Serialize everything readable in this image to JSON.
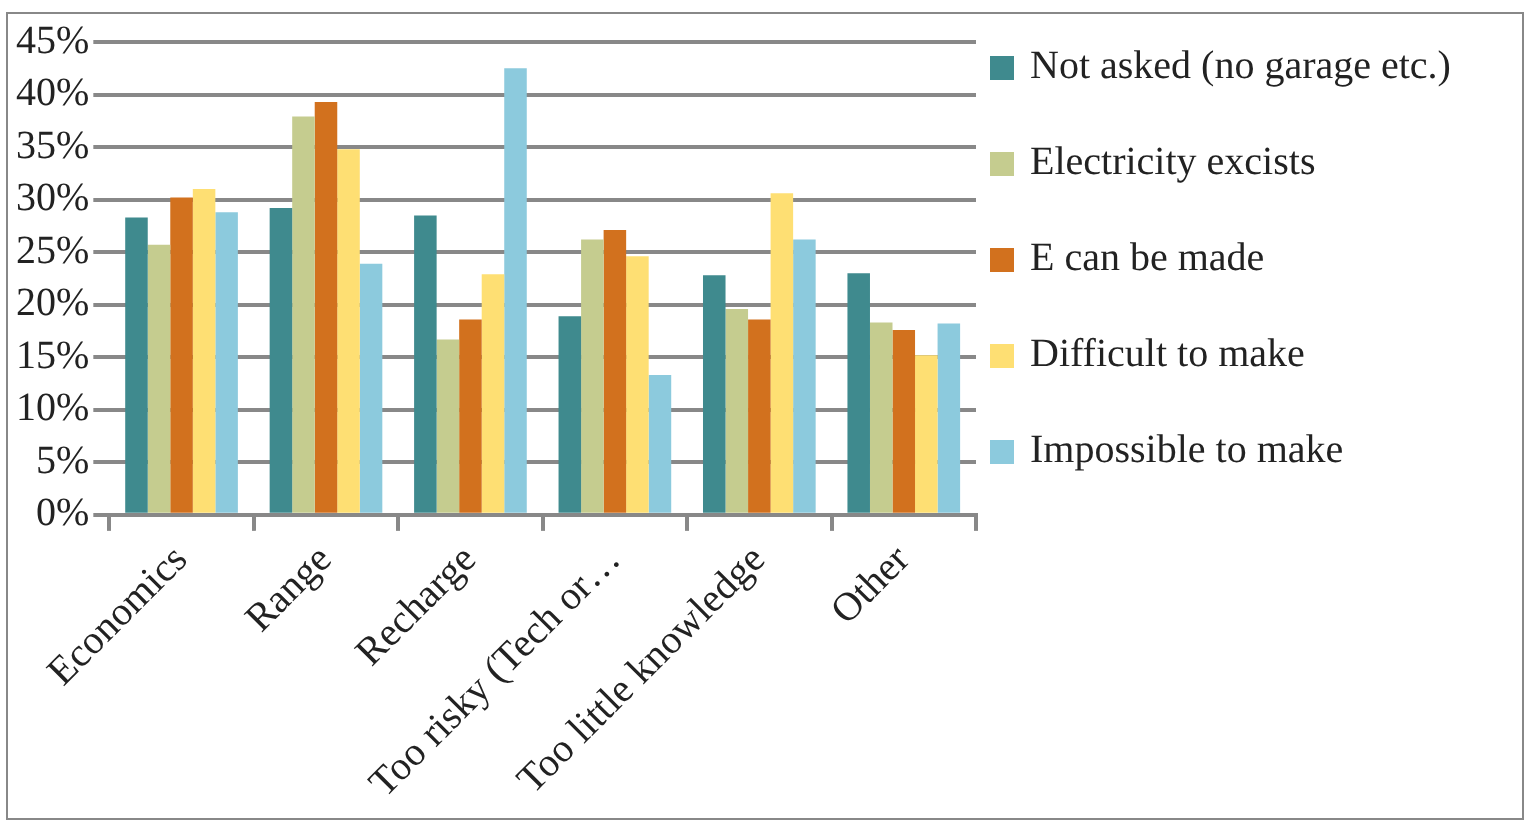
{
  "chart_data": {
    "type": "bar",
    "categories": [
      "Economics",
      "Range",
      "Recharge",
      "Too risky (Tech or…",
      "Too little knowledge",
      "Other"
    ],
    "series": [
      {
        "name": "Not asked (no garage etc.)",
        "color": "#3f8a8e",
        "values": [
          28.3,
          29.2,
          28.5,
          18.9,
          22.8,
          23.0
        ]
      },
      {
        "name": "Electricity excists",
        "color": "#c5cc8f",
        "values": [
          25.7,
          37.9,
          16.7,
          26.2,
          19.6,
          18.3
        ]
      },
      {
        "name": "E can be made",
        "color": "#d2711e",
        "values": [
          30.2,
          39.3,
          18.6,
          27.1,
          18.6,
          17.6
        ]
      },
      {
        "name": "Difficult to make",
        "color": "#fedf73",
        "values": [
          31.0,
          34.8,
          22.9,
          24.6,
          30.6,
          15.2
        ]
      },
      {
        "name": "Impossible to make",
        "color": "#8ccadd",
        "values": [
          28.8,
          23.9,
          42.5,
          13.3,
          26.2,
          18.2
        ]
      }
    ],
    "ylim": [
      0,
      45
    ],
    "yticks": [
      {
        "value": 0,
        "label": "0%"
      },
      {
        "value": 5,
        "label": "5%"
      },
      {
        "value": 10,
        "label": "10%"
      },
      {
        "value": 15,
        "label": "15%"
      },
      {
        "value": 20,
        "label": "20%"
      },
      {
        "value": 25,
        "label": "25%"
      },
      {
        "value": 30,
        "label": "30%"
      },
      {
        "value": 35,
        "label": "35%"
      },
      {
        "value": 40,
        "label": "40%"
      },
      {
        "value": 45,
        "label": "45%"
      }
    ],
    "grid": "y",
    "legend": "right"
  }
}
